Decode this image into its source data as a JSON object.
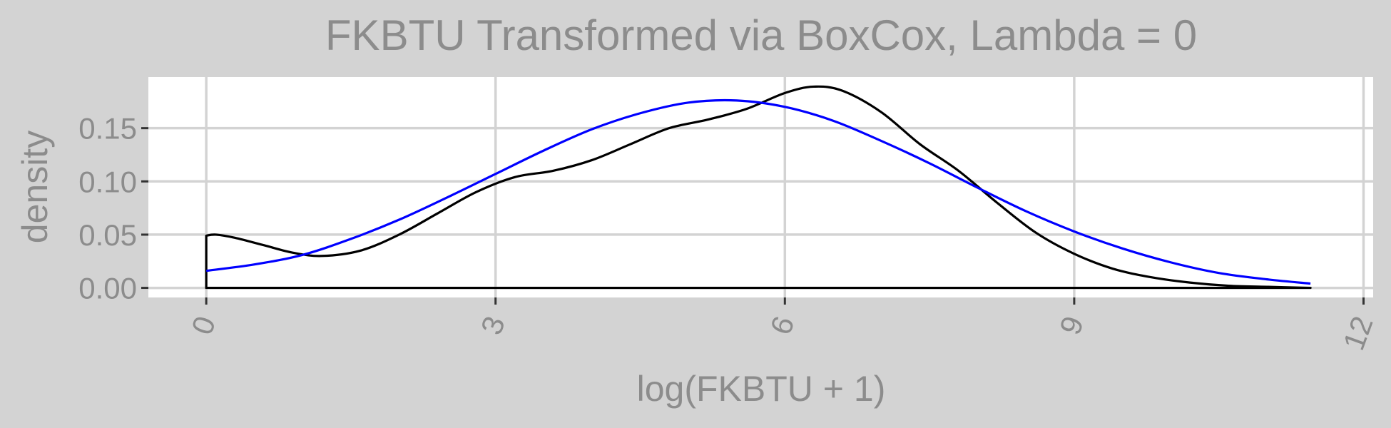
{
  "chart_data": {
    "type": "line",
    "title": "FKBTU Transformed via BoxCox, Lambda = 0",
    "xlabel": "log(FKBTU + 1)",
    "ylabel": "density",
    "xlim": [
      -0.6,
      12.1
    ],
    "ylim": [
      -0.009,
      0.198
    ],
    "x_ticks": [
      0,
      3,
      6,
      9,
      12
    ],
    "x_tick_labels": [
      "0",
      "3",
      "6",
      "9",
      "12"
    ],
    "y_ticks": [
      0.0,
      0.05,
      0.1,
      0.15
    ],
    "y_tick_labels": [
      "0.00",
      "0.05",
      "0.10",
      "0.15"
    ],
    "grid": true,
    "panel_background": "#ffffff",
    "plot_background": "#d3d3d3",
    "grid_color": "#d3d3d3",
    "series": [
      {
        "color": "#000000",
        "closed_to_baseline": true,
        "x": [
          0,
          0.1,
          0.3,
          0.6,
          0.9,
          1.2,
          1.6,
          2.0,
          2.4,
          2.8,
          3.2,
          3.6,
          4.0,
          4.4,
          4.8,
          5.2,
          5.6,
          6.0,
          6.3,
          6.6,
          7.0,
          7.4,
          7.8,
          8.2,
          8.6,
          9.0,
          9.4,
          9.8,
          10.2,
          10.6,
          11.0,
          11.45
        ],
        "y": [
          0.049,
          0.05,
          0.047,
          0.04,
          0.033,
          0.03,
          0.035,
          0.05,
          0.07,
          0.09,
          0.104,
          0.11,
          0.12,
          0.135,
          0.15,
          0.158,
          0.168,
          0.183,
          0.189,
          0.185,
          0.165,
          0.135,
          0.11,
          0.08,
          0.052,
          0.032,
          0.018,
          0.01,
          0.005,
          0.002,
          0.001,
          0.0
        ]
      },
      {
        "color": "#0000ff",
        "closed_to_baseline": false,
        "x": [
          0,
          0.5,
          1.0,
          1.5,
          2.0,
          2.5,
          3.0,
          3.5,
          4.0,
          4.5,
          5.0,
          5.5,
          6.0,
          6.5,
          7.0,
          7.5,
          8.0,
          8.5,
          9.0,
          9.5,
          10.0,
          10.5,
          11.0,
          11.45
        ],
        "y": [
          0.016,
          0.022,
          0.031,
          0.046,
          0.064,
          0.085,
          0.107,
          0.129,
          0.149,
          0.164,
          0.174,
          0.176,
          0.17,
          0.157,
          0.138,
          0.117,
          0.094,
          0.072,
          0.053,
          0.037,
          0.024,
          0.014,
          0.008,
          0.004
        ]
      }
    ]
  }
}
